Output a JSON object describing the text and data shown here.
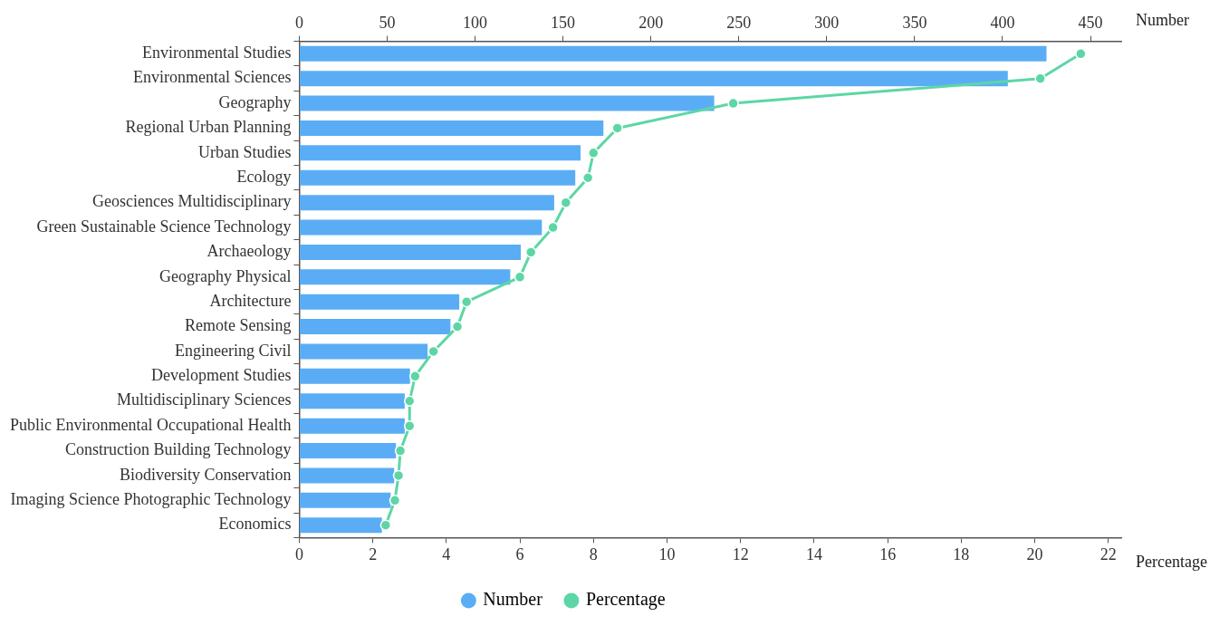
{
  "chart_data": {
    "type": "bar",
    "orientation": "horizontal",
    "categories": [
      "Environmental Studies",
      "Environmental Sciences",
      "Geography",
      "Regional Urban Planning",
      "Urban Studies",
      "Ecology",
      "Geosciences Multidisciplinary",
      "Green Sustainable Science Technology",
      "Archaeology",
      "Geography Physical",
      "Architecture",
      "Remote Sensing",
      "Engineering Civil",
      "Development Studies",
      "Multidisciplinary Sciences",
      "Public Environmental Occupational Health",
      "Construction Building Technology",
      "Biodiversity Conservation",
      "Imaging Science Photographic Technology",
      "Economics"
    ],
    "series": [
      {
        "name": "Number",
        "axis": "x2",
        "color": "#5aadf5",
        "values": [
          425,
          403,
          236,
          173,
          160,
          157,
          145,
          138,
          126,
          120,
          91,
          86,
          73,
          63,
          60,
          60,
          55,
          54,
          52,
          47
        ]
      },
      {
        "name": "Percentage",
        "type": "line",
        "color": "#5dd6a5",
        "marker": "circle",
        "line_style": "solid",
        "values": [
          21.25,
          20.15,
          11.8,
          8.65,
          8.0,
          7.85,
          7.25,
          6.9,
          6.3,
          6.0,
          4.55,
          4.3,
          3.65,
          3.15,
          3.0,
          3.0,
          2.75,
          2.7,
          2.6,
          2.35
        ]
      }
    ],
    "xlabel": "Percentage",
    "xlim": [
      0,
      22.35
    ],
    "xticks": [
      0,
      2,
      4,
      6,
      8,
      10,
      12,
      14,
      16,
      18,
      20,
      22
    ],
    "x2label": "Number",
    "x2lim": [
      0,
      467.5
    ],
    "x2ticks": [
      0,
      50,
      100,
      150,
      200,
      250,
      300,
      350,
      400,
      450
    ],
    "grid": false,
    "legend": "bottom"
  }
}
